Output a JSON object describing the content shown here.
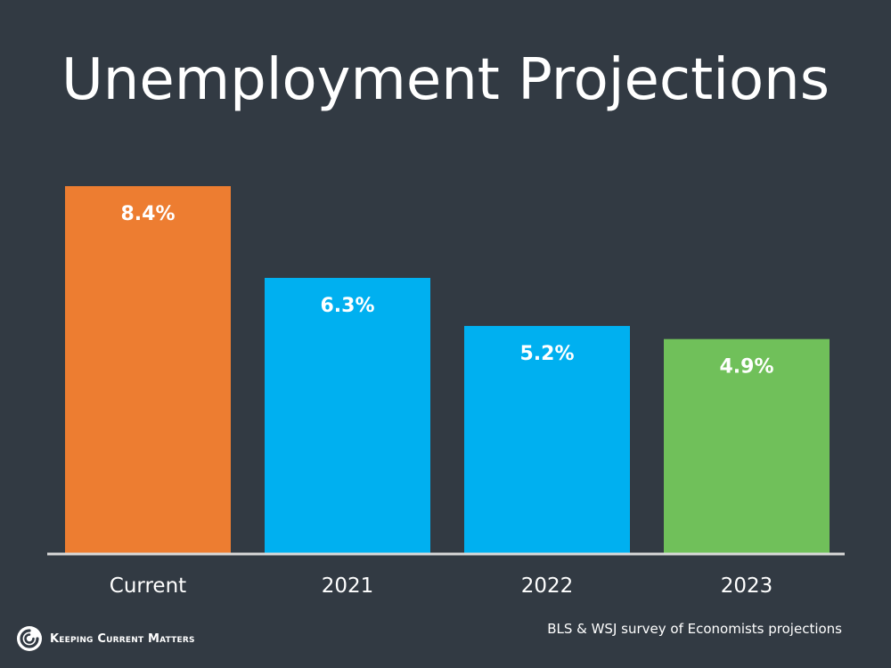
{
  "chart_data": {
    "type": "bar",
    "title": "Unemployment Projections",
    "categories": [
      "Current",
      "2021",
      "2022",
      "2023"
    ],
    "values": [
      8.4,
      6.3,
      5.2,
      4.9
    ],
    "value_labels": [
      "8.4%",
      "6.3%",
      "5.2%",
      "4.9%"
    ],
    "colors": [
      "#ed7d31",
      "#00b0f0",
      "#00b0f0",
      "#70c05a"
    ],
    "ylim": [
      0,
      8.4
    ],
    "grid": false,
    "legend": "none"
  },
  "footer": {
    "source": "BLS & WSJ survey of Economists projections",
    "brand": "Keeping Current Matters"
  },
  "colors": {
    "background": "#323a43",
    "baseline": "#d9d9d9",
    "text": "#ffffff"
  }
}
